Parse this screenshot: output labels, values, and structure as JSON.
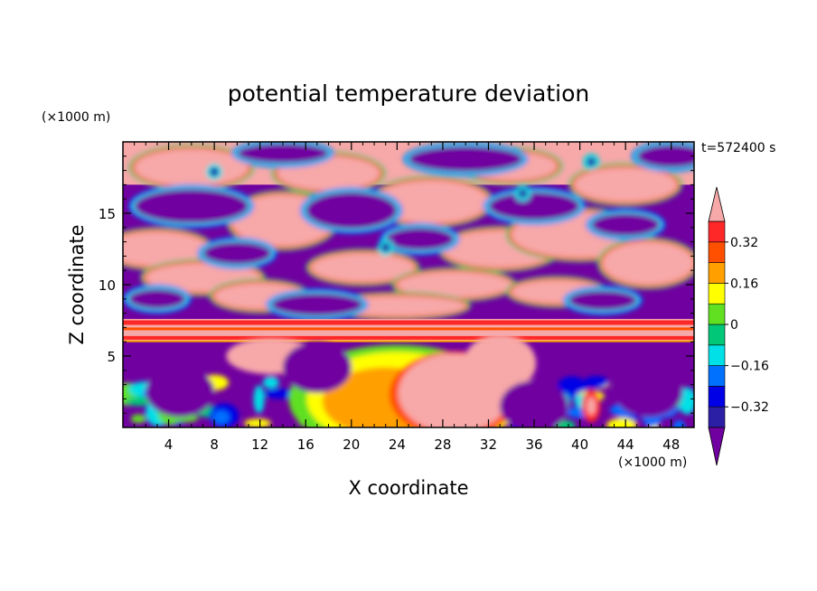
{
  "chart_data": {
    "type": "heatmap",
    "title": "potential temperature deviation",
    "xlabel": "X coordinate",
    "ylabel": "Z coordinate",
    "x_unit": "(×1000 m)",
    "y_unit": "(×1000 m)",
    "time_label": "t=572400 s",
    "xlim": [
      0,
      50
    ],
    "ylim": [
      0,
      20
    ],
    "x_ticks": [
      4,
      8,
      12,
      16,
      20,
      24,
      28,
      32,
      36,
      40,
      44,
      48
    ],
    "y_ticks": [
      5,
      10,
      15
    ],
    "x_tick_labels": [
      "4",
      "8",
      "12",
      "16",
      "20",
      "24",
      "28",
      "32",
      "36",
      "40",
      "44",
      "48"
    ],
    "y_tick_labels": [
      "5",
      "10",
      "15"
    ],
    "colorbar": {
      "levels": [
        -0.4,
        -0.32,
        -0.24,
        -0.16,
        -0.08,
        0,
        0.08,
        0.16,
        0.24,
        0.32,
        0.4
      ],
      "tick_values": [
        -0.32,
        -0.16,
        0,
        0.16,
        0.32
      ],
      "tick_labels": [
        "−0.32",
        "−0.16",
        "0",
        "0.16",
        "0.32"
      ],
      "extend": "both",
      "colors": [
        "#7000a0",
        "#2b1fa6",
        "#0000e6",
        "#0070ff",
        "#00e0e6",
        "#00c878",
        "#60e020",
        "#ffff00",
        "#ffa000",
        "#ff5000",
        "#ff2828",
        "#f7a8a8"
      ]
    },
    "colormap": [
      "#7000a0",
      "#2b1fa6",
      "#0000e6",
      "#0070ff",
      "#00e0e6",
      "#00c878",
      "#60e020",
      "#ffff00",
      "#ffa000",
      "#ff5000",
      "#ff2828",
      "#f7a8a8"
    ],
    "bands": [
      {
        "z_range": [
          17,
          20
        ],
        "description": "upper layer: mixed extreme values",
        "dominant": [
          "#f7a8a8",
          "#7000a0"
        ]
      },
      {
        "z_range": [
          7.5,
          17
        ],
        "description": "alternating warm/cold cells",
        "dominant": [
          "#f7a8a8",
          "#7000a0"
        ]
      },
      {
        "z_range": [
          6,
          7.5
        ],
        "description": "warm stratified layer",
        "dominant": [
          "#f7a8a8",
          "#ff2828"
        ]
      },
      {
        "z_range": [
          0,
          6
        ],
        "description": "convective boundary layer with warm plume near x=28",
        "dominant": [
          "#7000a0",
          "#0070ff",
          "#ffff00",
          "#f7a8a8"
        ]
      }
    ]
  }
}
